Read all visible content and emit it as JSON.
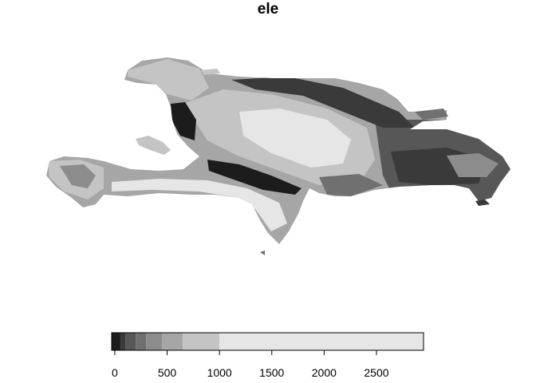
{
  "title": "ele",
  "legend": {
    "breaks": [
      0,
      50,
      100,
      200,
      300,
      450,
      650,
      1000,
      2950
    ],
    "colors": [
      "#1c1c1c",
      "#3a3a3a",
      "#575757",
      "#707070",
      "#8c8c8c",
      "#a6a6a6",
      "#c4c4c4",
      "#e6e6e6"
    ],
    "ticks": [
      0,
      500,
      1000,
      1500,
      2000,
      2500
    ],
    "tick_labels": [
      "0",
      "500",
      "1000",
      "1500",
      "2000",
      "2500"
    ],
    "range": [
      -30,
      2950
    ]
  }
}
